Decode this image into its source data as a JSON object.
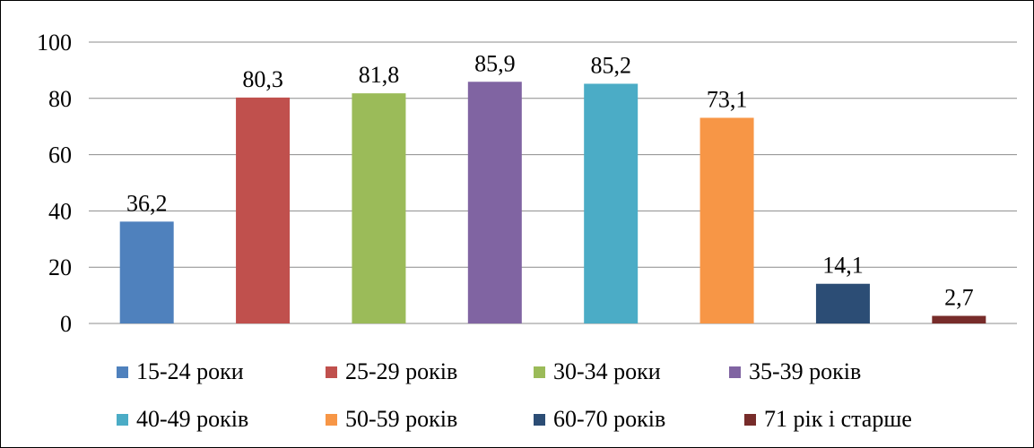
{
  "chart_data": {
    "type": "bar",
    "title": "",
    "xlabel": "",
    "ylabel": "",
    "ylim": [
      0,
      100
    ],
    "y_ticks": [
      "0",
      "20",
      "40",
      "60",
      "80",
      "100"
    ],
    "grid": true,
    "legend_position": "bottom",
    "categories": [
      "15-24 роки",
      "25-29 років",
      "30-34 роки",
      "35-39 років",
      "40-49 років",
      "50-59 років",
      "60-70 років",
      "71 рік і старше"
    ],
    "values": [
      36.2,
      80.3,
      81.8,
      85.9,
      85.2,
      73.1,
      14.1,
      2.7
    ],
    "value_labels": [
      "36,2",
      "80,3",
      "81,8",
      "85,9",
      "85,2",
      "73,1",
      "14,1",
      "2,7"
    ],
    "colors": [
      "#4F81BD",
      "#C0504D",
      "#9BBB59",
      "#8064A2",
      "#4BACC6",
      "#F79646",
      "#2C4D75",
      "#772C2A"
    ]
  }
}
